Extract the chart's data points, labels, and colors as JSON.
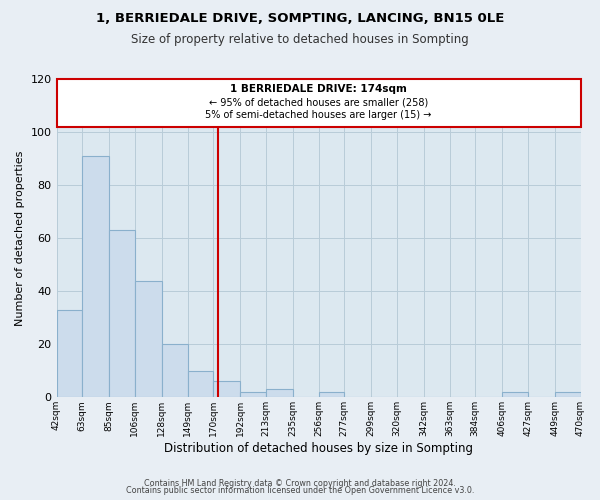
{
  "title": "1, BERRIEDALE DRIVE, SOMPTING, LANCING, BN15 0LE",
  "subtitle": "Size of property relative to detached houses in Sompting",
  "xlabel": "Distribution of detached houses by size in Sompting",
  "ylabel": "Number of detached properties",
  "bar_color": "#ccdcec",
  "bar_edge_color": "#8ab0cc",
  "bin_edges": [
    42,
    63,
    85,
    106,
    128,
    149,
    170,
    192,
    213,
    235,
    256,
    277,
    299,
    320,
    342,
    363,
    384,
    406,
    427,
    449,
    470
  ],
  "counts": [
    33,
    91,
    63,
    44,
    20,
    10,
    6,
    2,
    3,
    0,
    2,
    0,
    0,
    0,
    0,
    0,
    0,
    2,
    0,
    2
  ],
  "tick_labels": [
    "42sqm",
    "63sqm",
    "85sqm",
    "106sqm",
    "128sqm",
    "149sqm",
    "170sqm",
    "192sqm",
    "213sqm",
    "235sqm",
    "256sqm",
    "277sqm",
    "299sqm",
    "320sqm",
    "342sqm",
    "363sqm",
    "384sqm",
    "406sqm",
    "427sqm",
    "449sqm",
    "470sqm"
  ],
  "vline_x": 174,
  "vline_color": "#cc0000",
  "annotation_title": "1 BERRIEDALE DRIVE: 174sqm",
  "annotation_line1": "← 95% of detached houses are smaller (258)",
  "annotation_line2": "5% of semi-detached houses are larger (15) →",
  "annotation_box_color": "#cc0000",
  "ylim": [
    0,
    120
  ],
  "yticks": [
    0,
    20,
    40,
    60,
    80,
    100,
    120
  ],
  "footer1": "Contains HM Land Registry data © Crown copyright and database right 2024.",
  "footer2": "Contains public sector information licensed under the Open Government Licence v3.0.",
  "background_color": "#e8eef4",
  "plot_bg_color": "#dce8f0"
}
